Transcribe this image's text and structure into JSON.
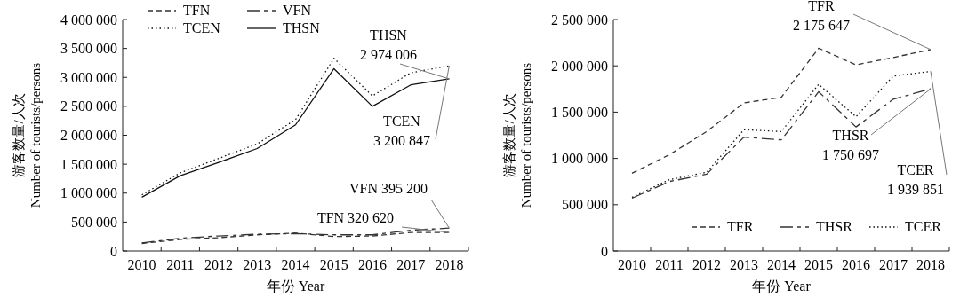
{
  "chart_data": [
    {
      "type": "line",
      "xlabel": "年份 Year",
      "ylabel": "游客数量/人次\nNumber of tourists/persons",
      "categories": [
        "2010",
        "2011",
        "2012",
        "2013",
        "2014",
        "2015",
        "2016",
        "2017",
        "2018"
      ],
      "ylim": [
        0,
        4000000
      ],
      "yticks": [
        0,
        {
          "value": 500000,
          "label": "500 000"
        },
        {
          "value": 1000000,
          "label": "1 000 000"
        },
        {
          "value": 1500000,
          "label": "1 500 000"
        },
        {
          "value": 2000000,
          "label": "2 000 000"
        },
        {
          "value": 2500000,
          "label": "2 500 000"
        },
        {
          "value": 3000000,
          "label": "3 000 000"
        },
        {
          "value": 3500000,
          "label": "3 500 000"
        },
        {
          "value": 4000000,
          "label": "4 000 000"
        }
      ],
      "series": [
        {
          "name": "TFN",
          "color": "#333333",
          "line_style": "dashed",
          "values": [
            130000,
            200000,
            230000,
            280000,
            310000,
            250000,
            260000,
            320000,
            320620
          ]
        },
        {
          "name": "VFN",
          "color": "#333333",
          "line_style": "dashdot",
          "values": [
            140000,
            220000,
            260000,
            290000,
            300000,
            280000,
            280000,
            360000,
            395200
          ]
        },
        {
          "name": "TCEN",
          "color": "#111111",
          "line_style": "dotted",
          "values": [
            970000,
            1350000,
            1600000,
            1850000,
            2270000,
            3330000,
            2680000,
            3080000,
            3200847
          ]
        },
        {
          "name": "THSN",
          "color": "#111111",
          "line_style": "solid",
          "values": [
            930000,
            1300000,
            1530000,
            1770000,
            2180000,
            3150000,
            2500000,
            2870000,
            2974006
          ]
        }
      ],
      "annotations": [
        {
          "text": "THSN\n2 974 006",
          "x": "2018",
          "y": 2974006
        },
        {
          "text": "TCEN\n3 200 847",
          "x": "2018",
          "y": 3200847
        },
        {
          "text": "VFN 395 200",
          "x": "2018",
          "y": 395200
        },
        {
          "text": "TFN 320 620",
          "x": "2018",
          "y": 320620
        }
      ],
      "legend": "top left",
      "grid": false
    },
    {
      "type": "line",
      "xlabel": "年份 Year",
      "ylabel": "游客数量/人次\nNumber of tourists/persons",
      "categories": [
        "2010",
        "2011",
        "2012",
        "2013",
        "2014",
        "2015",
        "2016",
        "2017",
        "2018"
      ],
      "ylim": [
        0,
        2500000
      ],
      "yticks": [
        0,
        {
          "value": 500000,
          "label": "500 000"
        },
        {
          "value": 1000000,
          "label": "1 000 000"
        },
        {
          "value": 1500000,
          "label": "1 500 000"
        },
        {
          "value": 2000000,
          "label": "2 000 000"
        },
        {
          "value": 2500000,
          "label": "2 500 000"
        }
      ],
      "series": [
        {
          "name": "TFR",
          "color": "#333333",
          "line_style": "dashed",
          "values": [
            840000,
            1040000,
            1290000,
            1600000,
            1660000,
            2190000,
            2010000,
            2090000,
            2175647
          ]
        },
        {
          "name": "THSR",
          "color": "#333333",
          "line_style": "dashdot",
          "values": [
            570000,
            750000,
            830000,
            1230000,
            1200000,
            1720000,
            1340000,
            1640000,
            1750697
          ]
        },
        {
          "name": "TCER",
          "color": "#111111",
          "line_style": "dotted",
          "values": [
            580000,
            770000,
            850000,
            1310000,
            1290000,
            1800000,
            1450000,
            1890000,
            1939851
          ]
        }
      ],
      "annotations": [
        {
          "text": "TFR\n2 175 647",
          "x": "2018",
          "y": 2175647
        },
        {
          "text": "THSR\n1 750 697",
          "x": "2018",
          "y": 1750697
        },
        {
          "text": "TCER\n1 939 851",
          "x": "2018",
          "y": 1939851
        }
      ],
      "legend": "bottom right",
      "grid": false
    }
  ]
}
